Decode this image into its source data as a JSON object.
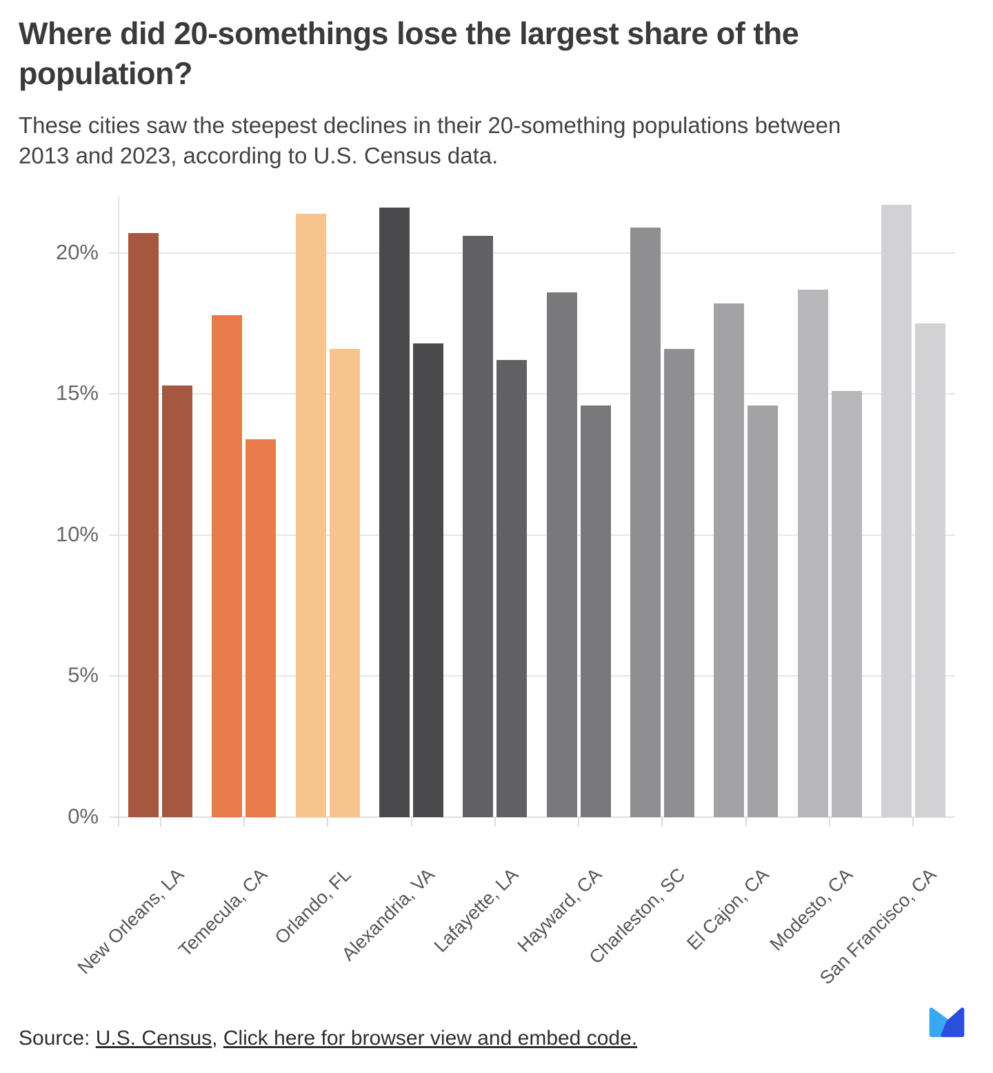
{
  "header": {
    "title": "Where did 20-somethings lose the largest share of the population?",
    "subtitle": "These cities saw the steepest declines in their 20-something populations between 2013 and 2023, according to U.S. Census data."
  },
  "chart_data": {
    "type": "bar",
    "categories": [
      "New Orleans, LA",
      "Temecula, CA",
      "Orlando, FL",
      "Alexandria, VA",
      "Lafayette, LA",
      "Hayward, CA",
      "Charleston, SC",
      "El Cajon, CA",
      "Modesto, CA",
      "San Francisco, CA"
    ],
    "series": [
      {
        "name": "2013",
        "values": [
          20.7,
          17.8,
          21.4,
          21.6,
          20.6,
          18.6,
          20.9,
          18.2,
          18.7,
          21.7
        ]
      },
      {
        "name": "2023",
        "values": [
          15.3,
          13.4,
          16.6,
          16.8,
          16.2,
          14.6,
          16.6,
          14.6,
          15.1,
          17.5
        ]
      }
    ],
    "bar_colors": [
      "#a5573f",
      "#e77c4a",
      "#f6c48c",
      "#4a4a4c",
      "#616163",
      "#79797b",
      "#8f8f91",
      "#a3a3a5",
      "#b7b7b9",
      "#d2d2d4"
    ],
    "title": "Where did 20-somethings lose the largest share of the population?",
    "xlabel": "",
    "ylabel": "",
    "yticks": [
      "0%",
      "5%",
      "10%",
      "15%",
      "20%"
    ],
    "ytick_values": [
      0,
      5,
      10,
      15,
      20
    ],
    "ylim": [
      0,
      22
    ],
    "grid": true,
    "legend": "none"
  },
  "footer": {
    "source_prefix": "Source: ",
    "source_link": "U.S. Census",
    "separator": ", ",
    "embed_link": "Click here for browser view and embed code.",
    "logo": {
      "name": "m-mark-logo",
      "light_blue": "#38a8f0",
      "dark_blue": "#2c4fdb"
    }
  }
}
